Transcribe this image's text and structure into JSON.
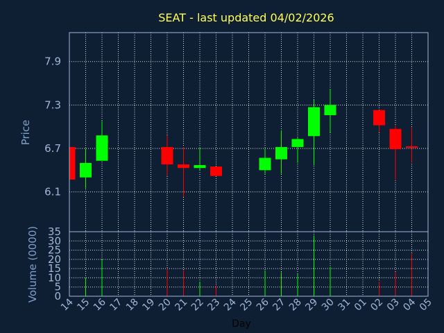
{
  "chart_data": {
    "type": "candlestick",
    "title": "SEAT - last updated 04/02/2026",
    "price_panel": {
      "ylabel": "Price",
      "yticks": [
        6.1,
        6.7,
        7.3,
        7.9
      ],
      "ylim": [
        5.55,
        8.3
      ]
    },
    "volume_panel": {
      "ylabel": "Volume (0000)",
      "yticks": [
        0,
        5,
        10,
        15,
        20,
        25,
        30,
        35
      ],
      "ylim": [
        0,
        35
      ]
    },
    "xlabel": "Day",
    "x_ticks": [
      "14",
      "15",
      "16",
      "17",
      "18",
      "19",
      "20",
      "21",
      "22",
      "23",
      "24",
      "25",
      "26",
      "27",
      "28",
      "29",
      "30",
      "31",
      "01",
      "02",
      "03",
      "04",
      "05"
    ],
    "grid": true,
    "colors": {
      "up": "#00ff00",
      "down": "#ff0000",
      "background": "#0f1f33",
      "title": "#ffff55"
    },
    "candles": [
      {
        "day": "14",
        "open": 6.72,
        "high": 6.72,
        "low": 6.27,
        "close": 6.27,
        "volume": 0
      },
      {
        "day": "15",
        "open": 6.3,
        "high": 6.7,
        "low": 6.15,
        "close": 6.5,
        "volume": 10
      },
      {
        "day": "16",
        "open": 6.53,
        "high": 7.08,
        "low": 6.53,
        "close": 6.88,
        "volume": 20
      },
      {
        "day": "20",
        "open": 6.72,
        "high": 6.88,
        "low": 6.32,
        "close": 6.48,
        "volume": 15
      },
      {
        "day": "21",
        "open": 6.48,
        "high": 6.72,
        "low": 6.03,
        "close": 6.43,
        "volume": 14
      },
      {
        "day": "22",
        "open": 6.43,
        "high": 6.72,
        "low": 6.4,
        "close": 6.47,
        "volume": 8
      },
      {
        "day": "23",
        "open": 6.45,
        "high": 6.45,
        "low": 6.32,
        "close": 6.32,
        "volume": 6
      },
      {
        "day": "26",
        "open": 6.4,
        "high": 6.7,
        "low": 6.35,
        "close": 6.57,
        "volume": 14
      },
      {
        "day": "27",
        "open": 6.55,
        "high": 6.95,
        "low": 6.35,
        "close": 6.72,
        "volume": 13
      },
      {
        "day": "28",
        "open": 6.72,
        "high": 6.85,
        "low": 6.5,
        "close": 6.83,
        "volume": 12
      },
      {
        "day": "29",
        "open": 6.87,
        "high": 7.37,
        "low": 6.47,
        "close": 7.27,
        "volume": 33
      },
      {
        "day": "30",
        "open": 7.16,
        "high": 7.52,
        "low": 6.92,
        "close": 7.3,
        "volume": 16
      },
      {
        "day": "02",
        "open": 7.23,
        "high": 7.23,
        "low": 6.92,
        "close": 7.02,
        "volume": 8
      },
      {
        "day": "03",
        "open": 6.97,
        "high": 7.02,
        "low": 6.27,
        "close": 6.69,
        "volume": 13
      },
      {
        "day": "04",
        "open": 6.73,
        "high": 6.99,
        "low": 6.51,
        "close": 6.71,
        "volume": 23
      }
    ]
  }
}
